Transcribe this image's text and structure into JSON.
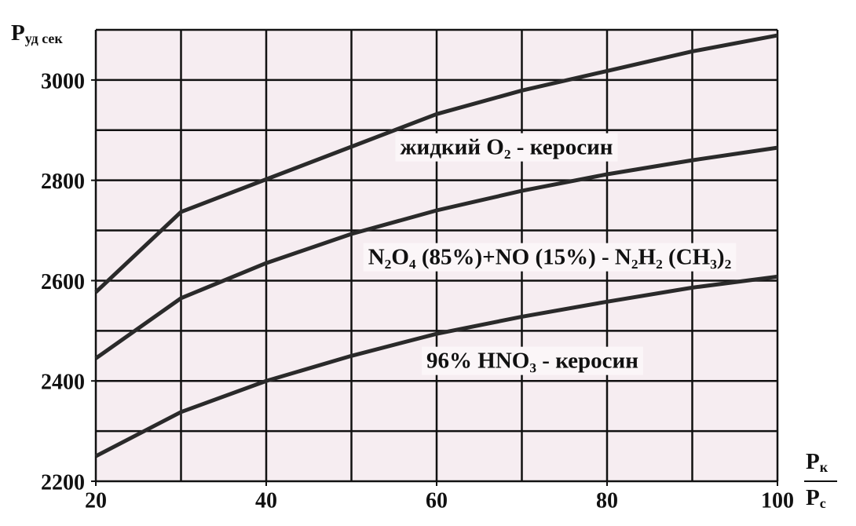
{
  "chart_data": {
    "type": "line",
    "y_label": {
      "main": "P",
      "sub": "уд сек"
    },
    "x_label": {
      "numerator": {
        "main": "P",
        "sub": "к"
      },
      "denominator": {
        "main": "P",
        "sub": "с"
      }
    },
    "x": [
      20,
      30,
      40,
      50,
      60,
      70,
      80,
      90,
      100
    ],
    "series": [
      {
        "name": "жидкий O₂ - керосин",
        "color": "#2a2a2a",
        "values": [
          2577,
          2737,
          2802,
          2867,
          2932,
          2979,
          3018,
          3057,
          3089
        ]
      },
      {
        "name": "N₂O₄ (85%)+NO (15%) - N₂H₂ (CH₃)₂",
        "color": "#2a2a2a",
        "values": [
          2445,
          2565,
          2635,
          2693,
          2740,
          2779,
          2812,
          2840,
          2865
        ]
      },
      {
        "name": "96% HNO₃ - керосин",
        "color": "#2a2a2a",
        "values": [
          2250,
          2338,
          2400,
          2450,
          2494,
          2528,
          2558,
          2586,
          2608
        ]
      }
    ],
    "xlim": [
      20,
      100
    ],
    "ylim": [
      2200,
      3100
    ],
    "xticks": [
      20,
      40,
      60,
      80,
      100
    ],
    "yticks": [
      2200,
      2400,
      2600,
      2800,
      3000
    ],
    "x_grid": [
      20,
      30,
      40,
      50,
      60,
      70,
      80,
      90,
      100
    ],
    "y_grid": [
      2200,
      2300,
      2400,
      2500,
      2600,
      2700,
      2800,
      2900,
      3000,
      3100
    ],
    "grid": true
  }
}
